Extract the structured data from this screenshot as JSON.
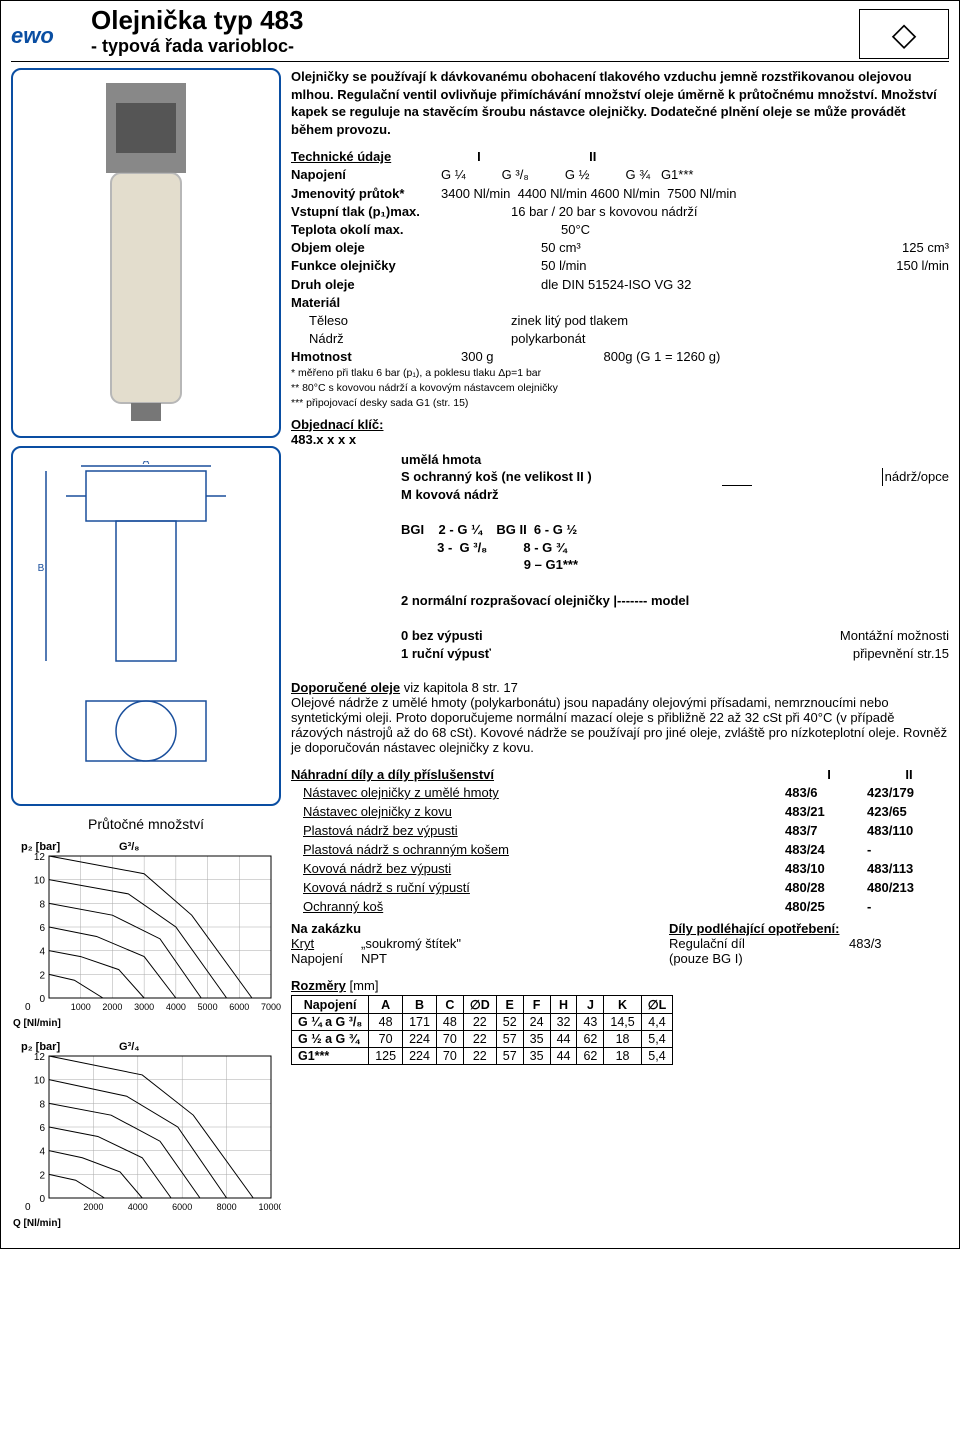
{
  "header": {
    "logo": "ewo",
    "title": "Olejnička typ 483",
    "subtitle": "- typová řada variobloc-"
  },
  "intro": "Olejničky se používají k dávkovanému obohacení tlakového vzduchu jemně rozstřikovanou olejovou mlhou. Regulační ventil ovlivňuje přimíchávání množství oleje úměrně k průtočnému množství. Množství kapek se reguluje na stavěcím šroubu nástavce olejničky. Dodatečné plnění oleje se může provádět během provozu.",
  "tech": {
    "heading": "Technické údaje",
    "col_I": "I",
    "col_II": "II",
    "rows": {
      "napojeni_lbl": "Napojení",
      "napojeni_vals": "G ¼          G ³/₈          G ½          G ¾   G1***",
      "prutok_lbl": "Jmenovitý průtok*",
      "prutok_vals": "3400 Nl/min  4400 Nl/min 4600 Nl/min  7500 Nl/min",
      "tlak_lbl": "Vstupní tlak (p₁)max.",
      "tlak_val": "16 bar / 20 bar s kovovou nádrží",
      "teplota_lbl": "Teplota okolí max.",
      "teplota_val": "50°C",
      "objem_lbl": "Objem oleje",
      "objem_I": "50 cm³",
      "objem_II": "125 cm³",
      "funkce_lbl": "Funkce olejničky",
      "funkce_I": "50 l/min",
      "funkce_II": "150 l/min",
      "druh_lbl": "Druh oleje",
      "druh_val": "dle DIN 51524-ISO VG 32",
      "material_lbl": "Materiál",
      "teleso_lbl": "Těleso",
      "teleso_val": "zinek litý pod tlakem",
      "nadrz_lbl": "Nádrž",
      "nadrz_val": "polykarbonát",
      "hmotnost_lbl": "Hmotnost",
      "hmotnost_I": "300 g",
      "hmotnost_II": "800g (G 1 = 1260 g)"
    },
    "notes": [
      "*   měřeno při tlaku 6 bar (p₁), a poklesu tlaku Δp=1 bar",
      "** 80°C s kovovou nádrží a kovovým nástavcem olejničky",
      "*** připojovací desky sada G1 (str. 15)"
    ]
  },
  "order": {
    "heading": "Objednací klíč:",
    "code": "483.x x x x",
    "level1": {
      "l1": "  umělá hmota",
      "l2a": "S ochranný koš (ne velikost II )",
      "l2b": "nádrž/opce",
      "l3": "M kovová nádrž"
    },
    "level2": {
      "l1": "BGI    2 - G ¼    BG II  6 - G ½",
      "l2": "          3 -  G ³/₈          8 - G ¾",
      "l3": "                                  9 – G1***"
    },
    "level3": "2 normální rozprašovací olejničky |------- model",
    "level4": {
      "l1a": "0  bez výpusti",
      "l1b": "Montážní možnosti",
      "l2a": "1  ruční výpusť",
      "l2b": "připevnění str.15"
    }
  },
  "flow_caption": "Průtočné množství",
  "charts": {
    "chart1": {
      "y_label": "p₂ [bar]",
      "series_label": "G³/₈",
      "x_label": "Q [Nl/min]",
      "xlim": [
        0,
        7000
      ],
      "xtick_step": 1000,
      "ylim": [
        0,
        12
      ],
      "yticks": [
        0,
        2,
        4,
        6,
        8,
        10,
        12
      ],
      "grid_color": "#aaa",
      "line_color": "#000",
      "curves": [
        [
          [
            0,
            2
          ],
          [
            800,
            1.5
          ],
          [
            1700,
            0
          ]
        ],
        [
          [
            0,
            4
          ],
          [
            1000,
            3.5
          ],
          [
            2200,
            2.4
          ],
          [
            3000,
            0
          ]
        ],
        [
          [
            0,
            6
          ],
          [
            1500,
            5.2
          ],
          [
            3000,
            3.5
          ],
          [
            4000,
            0
          ]
        ],
        [
          [
            0,
            8
          ],
          [
            2000,
            7
          ],
          [
            3500,
            5
          ],
          [
            4800,
            0
          ]
        ],
        [
          [
            0,
            10
          ],
          [
            2500,
            8.8
          ],
          [
            4000,
            6
          ],
          [
            5600,
            0
          ]
        ],
        [
          [
            0,
            12
          ],
          [
            3000,
            10.5
          ],
          [
            4500,
            7
          ],
          [
            6400,
            0
          ]
        ]
      ]
    },
    "chart2": {
      "y_label": "p₂ [bar]",
      "series_label": "G³/₄",
      "x_label": "Q [Nl/min]",
      "xlim": [
        0,
        10000
      ],
      "xtick_step": 2000,
      "ylim": [
        0,
        12
      ],
      "yticks": [
        0,
        2,
        4,
        6,
        8,
        10,
        12
      ],
      "grid_color": "#aaa",
      "line_color": "#000",
      "curves": [
        [
          [
            0,
            2
          ],
          [
            1200,
            1.5
          ],
          [
            2500,
            0
          ]
        ],
        [
          [
            0,
            4
          ],
          [
            1500,
            3.4
          ],
          [
            3200,
            2.2
          ],
          [
            4200,
            0
          ]
        ],
        [
          [
            0,
            6
          ],
          [
            2200,
            5.2
          ],
          [
            4200,
            3.4
          ],
          [
            5500,
            0
          ]
        ],
        [
          [
            0,
            8
          ],
          [
            2800,
            7
          ],
          [
            5000,
            4.8
          ],
          [
            6800,
            0
          ]
        ],
        [
          [
            0,
            10
          ],
          [
            3500,
            8.6
          ],
          [
            5800,
            6
          ],
          [
            8000,
            0
          ]
        ],
        [
          [
            0,
            12
          ],
          [
            4200,
            10.4
          ],
          [
            6500,
            7
          ],
          [
            9200,
            0
          ]
        ]
      ]
    }
  },
  "oils": {
    "heading": "Doporučené oleje",
    "heading_rest": " viz kapitola 8 str. 17",
    "text": "Olejové nádrže z umělé hmoty (polykarbonátu) jsou napadány olejovými přísadami, nemrznoucími nebo syntetickými oleji. Proto doporučujeme normální mazací oleje s přibližně 22 až 32 cSt při 40°C (v případě rázových nástrojů až do 68 cSt). Kovové nádrže se používají pro jiné oleje, zvláště pro nízkoteplotní oleje. Rovněž je doporučován nástavec olejničky z kovu."
  },
  "spares": {
    "heading": "Náhradní díly a díly příslušenství",
    "col_I": "I",
    "col_II": "II",
    "rows": [
      {
        "name": "Nástavec olejničky z umělé hmoty",
        "I": "483/6",
        "II": "423/179"
      },
      {
        "name": "Nástavec olejničky z kovu",
        "I": "483/21",
        "II": "423/65"
      },
      {
        "name": "Plastová nádrž bez výpusti",
        "I": "483/7",
        "II": "483/110"
      },
      {
        "name": "Plastová nádrž s ochranným košem",
        "I": "483/24",
        "II": "-"
      },
      {
        "name": "Kovová nádrž bez výpusti",
        "I": "483/10",
        "II": "483/113"
      },
      {
        "name": "Kovová nádrž s ruční výpustí",
        "I": "480/28",
        "II": "480/213"
      },
      {
        "name": "Ochranný koš",
        "I": "480/25",
        "II": "-"
      }
    ],
    "custom_heading": "Na zakázku",
    "wear_heading": "Díly podléhající opotřebení:",
    "custom1_lbl": "Kryt",
    "custom1_val": "„soukromý štítek\"",
    "wear1_lbl": "Regulační díl",
    "wear1_val": "483/3",
    "custom2_lbl": "Napojení",
    "custom2_val": "NPT",
    "wear2": "(pouze  BG I)"
  },
  "dims": {
    "heading": "Rozměry",
    "unit": "[mm]",
    "cols": [
      "Napojení",
      "A",
      "B",
      "C",
      "∅D",
      "E",
      "F",
      "H",
      "J",
      "K",
      "∅L"
    ],
    "rows": [
      [
        "G ¼  a  G ³/₈",
        "48",
        "171",
        "48",
        "22",
        "52",
        "24",
        "32",
        "43",
        "14,5",
        "4,4"
      ],
      [
        "G ½ a G ¾",
        "70",
        "224",
        "70",
        "22",
        "57",
        "35",
        "44",
        "62",
        "18",
        "5,4"
      ],
      [
        "G1***",
        "125",
        "224",
        "70",
        "22",
        "57",
        "35",
        "44",
        "62",
        "18",
        "5,4"
      ]
    ]
  }
}
